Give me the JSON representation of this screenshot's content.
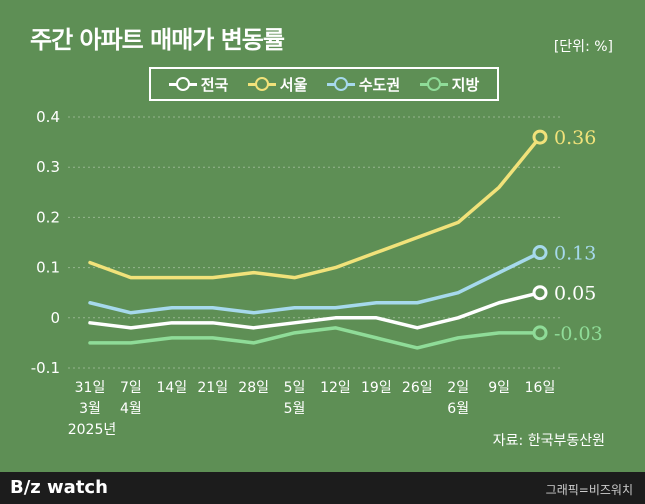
{
  "header": {
    "title": "주간 아파트 매매가 변동률",
    "unit": "[단위: %]"
  },
  "chart_data": {
    "type": "line",
    "title": "주간 아파트 매매가 변동률",
    "ylim": [
      -0.1,
      0.4
    ],
    "yticks": [
      "0.4",
      "0.3",
      "0.2",
      "0.1",
      "0",
      "-0.1"
    ],
    "ytick_values": [
      0.4,
      0.3,
      0.2,
      0.1,
      0,
      -0.1
    ],
    "grid": true,
    "legend_position": "top",
    "categories": [
      [
        "31일",
        "3월",
        "2025년"
      ],
      [
        "7일",
        "4월"
      ],
      [
        "14일"
      ],
      [
        "21일"
      ],
      [
        "28일"
      ],
      [
        "5일",
        "5월"
      ],
      [
        "12일"
      ],
      [
        "19일"
      ],
      [
        "26일"
      ],
      [
        "2일",
        "6월"
      ],
      [
        "9일"
      ],
      [
        "16일"
      ]
    ],
    "series": [
      {
        "name": "전국",
        "color": "#ffffff",
        "values": [
          -0.01,
          -0.02,
          -0.01,
          -0.01,
          -0.02,
          -0.01,
          0.0,
          0.0,
          -0.02,
          0.0,
          0.03,
          0.05
        ],
        "end_label": "0.05"
      },
      {
        "name": "서울",
        "color": "#f1e27a",
        "values": [
          0.11,
          0.08,
          0.08,
          0.08,
          0.09,
          0.08,
          0.1,
          0.13,
          0.16,
          0.19,
          0.26,
          0.36
        ],
        "end_label": "0.36"
      },
      {
        "name": "수도권",
        "color": "#a6d9ec",
        "values": [
          0.03,
          0.01,
          0.02,
          0.02,
          0.01,
          0.02,
          0.02,
          0.03,
          0.03,
          0.05,
          0.09,
          0.13
        ],
        "end_label": "0.13"
      },
      {
        "name": "지방",
        "color": "#8fdc98",
        "values": [
          -0.05,
          -0.05,
          -0.04,
          -0.04,
          -0.05,
          -0.03,
          -0.02,
          -0.04,
          -0.06,
          -0.04,
          -0.03,
          -0.03
        ],
        "end_label": "-0.03"
      }
    ]
  },
  "source": "자료: 한국부동산원",
  "footer": {
    "brand": "B/z watch",
    "credit": "그래픽=비즈워치"
  }
}
